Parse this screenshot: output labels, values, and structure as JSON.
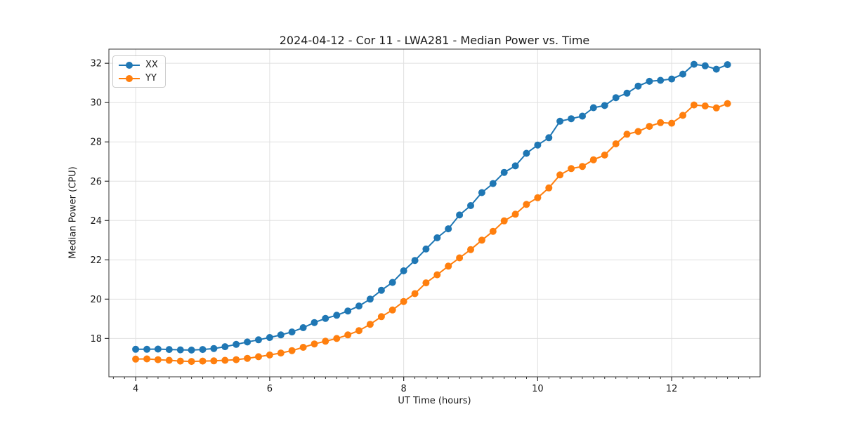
{
  "title": "2024-04-12 - Cor 11 - LWA281 - Median Power vs. Time",
  "chart_data": {
    "type": "line",
    "title": "2024-04-12 - Cor 11 - LWA281 - Median Power vs. Time",
    "xlabel": "UT Time (hours)",
    "ylabel": "Median Power (CPU)",
    "xlim": [
      3.6,
      13.32
    ],
    "ylim": [
      16.05,
      32.72
    ],
    "x_major_ticks": [
      4,
      6,
      8,
      10,
      12
    ],
    "x_minor_step": 0.16667,
    "y_major_ticks": [
      18,
      20,
      22,
      24,
      26,
      28,
      30,
      32
    ],
    "grid": true,
    "legend_position": "upper-left",
    "marker": "circle",
    "line_width": 2,
    "marker_radius": 5,
    "grid_color": "#e0e0e0",
    "spine_color": "#333333",
    "tick_color": "#333333",
    "x": [
      4.0,
      4.167,
      4.333,
      4.5,
      4.667,
      4.833,
      5.0,
      5.167,
      5.333,
      5.5,
      5.667,
      5.833,
      6.0,
      6.167,
      6.333,
      6.5,
      6.667,
      6.833,
      7.0,
      7.167,
      7.333,
      7.5,
      7.667,
      7.833,
      8.0,
      8.167,
      8.333,
      8.5,
      8.667,
      8.833,
      9.0,
      9.167,
      9.333,
      9.5,
      9.667,
      9.833,
      10.0,
      10.167,
      10.333,
      10.5,
      10.667,
      10.833,
      11.0,
      11.167,
      11.333,
      11.5,
      11.667,
      11.833,
      12.0,
      12.167,
      12.333,
      12.5,
      12.667,
      12.833
    ],
    "series": [
      {
        "name": "XX",
        "color": "#1f77b4",
        "values": [
          17.45,
          17.45,
          17.46,
          17.44,
          17.42,
          17.41,
          17.44,
          17.49,
          17.58,
          17.7,
          17.82,
          17.93,
          18.05,
          18.18,
          18.33,
          18.55,
          18.81,
          19.02,
          19.18,
          19.4,
          19.65,
          20.0,
          20.45,
          20.85,
          21.44,
          21.97,
          22.55,
          23.12,
          23.58,
          24.28,
          24.76,
          25.42,
          25.88,
          26.45,
          26.78,
          27.42,
          27.84,
          28.21,
          29.05,
          29.18,
          29.31,
          29.74,
          29.85,
          30.25,
          30.48,
          30.84,
          31.08,
          31.13,
          31.2,
          31.45,
          31.95,
          31.87,
          31.7,
          31.93
        ]
      },
      {
        "name": "YY",
        "color": "#ff7f0e",
        "values": [
          16.95,
          16.96,
          16.92,
          16.89,
          16.85,
          16.83,
          16.85,
          16.86,
          16.89,
          16.92,
          16.99,
          17.07,
          17.16,
          17.26,
          17.38,
          17.55,
          17.72,
          17.86,
          18.0,
          18.18,
          18.4,
          18.72,
          19.11,
          19.45,
          19.88,
          20.28,
          20.83,
          21.24,
          21.68,
          22.1,
          22.52,
          23.0,
          23.45,
          23.98,
          24.32,
          24.82,
          25.16,
          25.66,
          26.32,
          26.64,
          26.75,
          27.09,
          27.33,
          27.9,
          28.39,
          28.53,
          28.79,
          28.98,
          28.95,
          29.35,
          29.88,
          29.83,
          29.73,
          29.95
        ]
      }
    ]
  }
}
